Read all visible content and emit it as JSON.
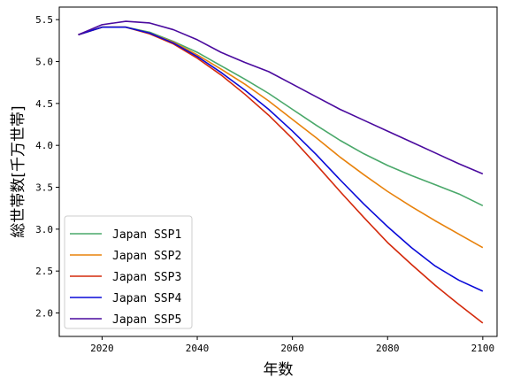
{
  "chart_data": {
    "type": "line",
    "title": "",
    "xlabel": "年数",
    "ylabel": "総世帯数[千万世帯]",
    "xlim": [
      2011,
      2103
    ],
    "ylim": [
      1.72,
      5.65
    ],
    "xticks": [
      2020,
      2040,
      2060,
      2080,
      2100
    ],
    "yticks": [
      2.0,
      2.5,
      3.0,
      3.5,
      4.0,
      4.5,
      5.0,
      5.5
    ],
    "x": [
      2015,
      2020,
      2025,
      2030,
      2035,
      2040,
      2045,
      2050,
      2055,
      2060,
      2065,
      2070,
      2075,
      2080,
      2085,
      2090,
      2095,
      2100
    ],
    "grid": false,
    "legend_position": "lower-left",
    "series": [
      {
        "name": "Japan SSP1",
        "color": "#4aa86a",
        "values": [
          5.32,
          5.41,
          5.41,
          5.35,
          5.24,
          5.11,
          4.95,
          4.79,
          4.62,
          4.43,
          4.24,
          4.06,
          3.9,
          3.76,
          3.64,
          3.53,
          3.42,
          3.28
        ]
      },
      {
        "name": "Japan SSP2",
        "color": "#e8820c",
        "values": [
          5.32,
          5.41,
          5.41,
          5.34,
          5.23,
          5.08,
          4.91,
          4.73,
          4.53,
          4.31,
          4.09,
          3.86,
          3.65,
          3.45,
          3.27,
          3.1,
          2.94,
          2.78
        ]
      },
      {
        "name": "Japan SSP3",
        "color": "#d42a0c",
        "values": [
          5.32,
          5.41,
          5.41,
          5.33,
          5.21,
          5.04,
          4.84,
          4.61,
          4.36,
          4.08,
          3.77,
          3.45,
          3.14,
          2.84,
          2.58,
          2.33,
          2.1,
          1.88
        ]
      },
      {
        "name": "Japan SSP4",
        "color": "#0a0ad8",
        "values": [
          5.32,
          5.41,
          5.41,
          5.34,
          5.22,
          5.06,
          4.87,
          4.66,
          4.43,
          4.17,
          3.89,
          3.59,
          3.3,
          3.03,
          2.78,
          2.56,
          2.39,
          2.26
        ]
      },
      {
        "name": "Japan SSP5",
        "color": "#4a0a9e",
        "values": [
          5.32,
          5.44,
          5.48,
          5.46,
          5.38,
          5.26,
          5.11,
          4.99,
          4.88,
          4.73,
          4.58,
          4.43,
          4.3,
          4.17,
          4.04,
          3.91,
          3.78,
          3.66
        ]
      }
    ]
  }
}
